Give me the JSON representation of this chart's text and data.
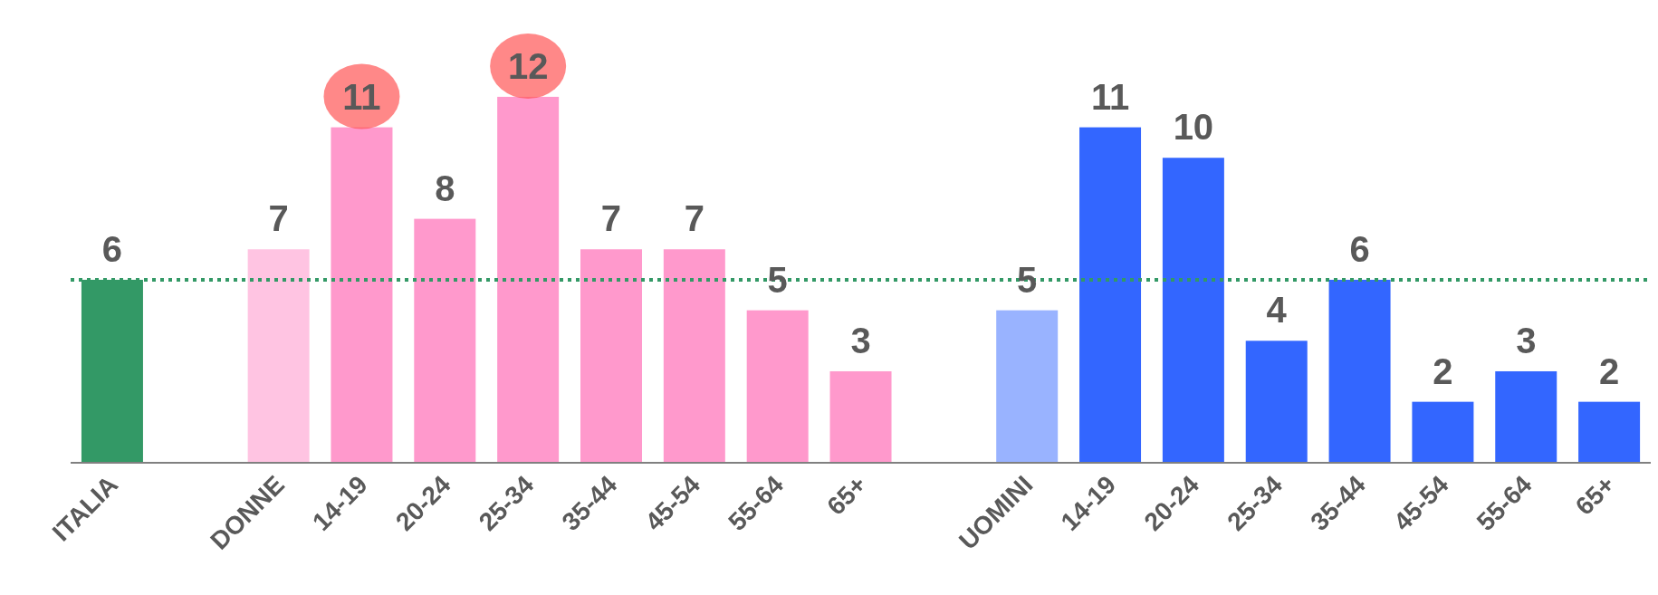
{
  "chart_data": {
    "type": "bar",
    "categories": [
      "ITALIA",
      null,
      "DONNE",
      "14-19",
      "20-24",
      "25-34",
      "35-44",
      "45-54",
      "55-64",
      "65+",
      null,
      "UOMINI",
      "14-19",
      "20-24",
      "25-34",
      "35-44",
      "45-54",
      "55-64",
      "65+"
    ],
    "values": [
      6,
      null,
      7,
      11,
      8,
      12,
      7,
      7,
      5,
      3,
      null,
      5,
      11,
      10,
      4,
      6,
      2,
      3,
      2
    ],
    "colors": [
      "#339966",
      null,
      "#ffc4e2",
      "#ff99cc",
      "#ff99cc",
      "#ff99cc",
      "#ff99cc",
      "#ff99cc",
      "#ff99cc",
      "#ff99cc",
      null,
      "#99b3ff",
      "#3366ff",
      "#3366ff",
      "#3366ff",
      "#3366ff",
      "#3366ff",
      "#3366ff",
      "#3366ff"
    ],
    "data_labels": true,
    "ref_lines": [
      {
        "axis": "y",
        "value": 6,
        "color": "#339966",
        "line_style": "dotted"
      }
    ]
  }
}
